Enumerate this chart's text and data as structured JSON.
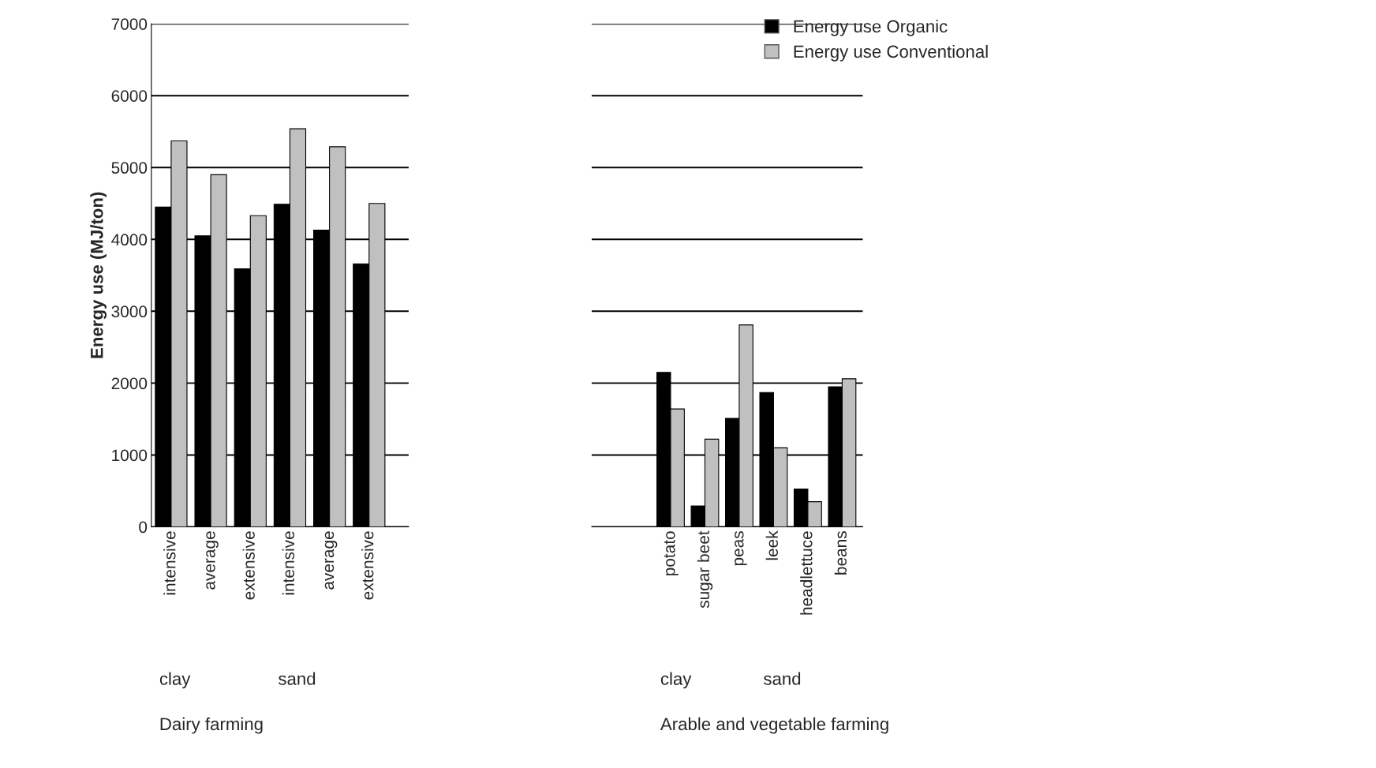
{
  "chart_data": [
    {
      "type": "bar",
      "ylabel": "Energy use (MJ/ton)",
      "categories": [
        "intensive",
        "average",
        "extensive",
        "intensive",
        "average",
        "extensive"
      ],
      "series": [
        {
          "name": "Energy use Organic",
          "color": "#000000",
          "values": [
            4450,
            4050,
            3590,
            4490,
            4130,
            3660
          ]
        },
        {
          "name": "Energy use Conventional",
          "color": "#c0c0c0",
          "values": [
            5370,
            4900,
            4330,
            5540,
            5290,
            4500
          ]
        }
      ],
      "ylim": [
        0,
        7000
      ],
      "yticks": [
        0,
        1000,
        2000,
        3000,
        4000,
        5000,
        6000,
        7000
      ],
      "grid": "y",
      "legend": "top right",
      "annotations": [
        "clay",
        "sand",
        "Dairy farming"
      ]
    },
    {
      "type": "bar",
      "categories": [
        "potato",
        "sugar beet",
        "peas",
        "leek",
        "headlettuce",
        "beans"
      ],
      "series": [
        {
          "color": "#000000",
          "values": [
            2150,
            290,
            1510,
            1870,
            525,
            1950
          ]
        },
        {
          "color": "#c0c0c0",
          "values": [
            1640,
            1220,
            2810,
            1100,
            350,
            2060
          ]
        }
      ],
      "ylim": [
        0,
        7000
      ],
      "yticks": [
        0,
        1000,
        2000,
        3000,
        4000,
        5000,
        6000,
        7000
      ],
      "grid": "y",
      "tick_labels": "x",
      "annotations": [
        "clay",
        "sand",
        "Arable and vegetable farming"
      ]
    }
  ]
}
